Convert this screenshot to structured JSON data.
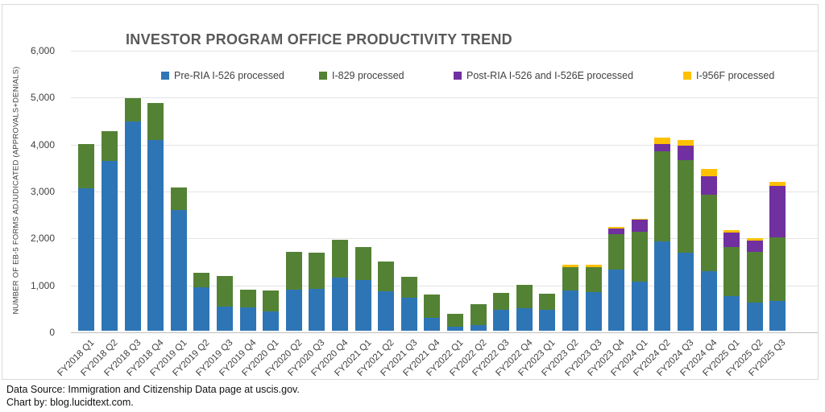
{
  "footer": {
    "source_line": "Data Source: Immigration and Citizenship Data page at uscis.gov.",
    "credit_line": "Chart by: blog.lucidtext.com."
  },
  "chart_data": {
    "type": "bar",
    "stacked": true,
    "title": "INVESTOR PROGRAM OFFICE PRODUCTIVITY TREND",
    "ylabel": "NUMBER OF EB-5 FORMS ADJUDICATED (APPROVALS+DENIALS)",
    "xlabel": "",
    "ylim": [
      0,
      6000
    ],
    "grid": true,
    "legend_position": "top",
    "ytick_labels": [
      "0",
      "1,000",
      "2,000",
      "3,000",
      "4,000",
      "5,000",
      "6,000"
    ],
    "ytick_values": [
      0,
      1000,
      2000,
      3000,
      4000,
      5000,
      6000
    ],
    "categories": [
      "FY2018 Q1",
      "FY2018 Q2",
      "FY2018 Q3",
      "FY2018 Q4",
      "FY2019 Q1",
      "FY2019 Q2",
      "FY2019 Q3",
      "FY2019 Q4",
      "FY2020 Q1",
      "FY2020 Q2",
      "FY2020 Q3",
      "FY2020 Q4",
      "FY2021 Q1",
      "FY2021 Q2",
      "FY2021 Q3",
      "FY2021 Q4",
      "FY2022 Q1",
      "FY2022 Q2",
      "FY2022 Q3",
      "FY2022 Q4",
      "FY2023 Q1",
      "FY2023 Q2",
      "FY2023 Q3",
      "FY2023 Q4",
      "FY2024 Q1",
      "FY2024 Q2",
      "FY2024 Q3",
      "FY2024 Q4",
      "FY2025 Q1",
      "FY2025 Q2",
      "FY2025 Q3"
    ],
    "series": [
      {
        "name": "Pre-RIA I-526 processed",
        "color": "#2E75B6",
        "values": [
          3040,
          3615,
          4460,
          4060,
          2580,
          930,
          515,
          505,
          410,
          870,
          900,
          1125,
          1075,
          840,
          705,
          270,
          85,
          125,
          440,
          485,
          440,
          860,
          830,
          1300,
          1040,
          1905,
          1660,
          1270,
          745,
          600,
          640
        ]
      },
      {
        "name": "I-829 processed",
        "color": "#548235",
        "values": [
          930,
          645,
          490,
          785,
          480,
          310,
          645,
          370,
          450,
          810,
          755,
          815,
          715,
          630,
          440,
          495,
          270,
          435,
          360,
          485,
          345,
          495,
          525,
          760,
          1070,
          1925,
          1970,
          1620,
          1030,
          1085,
          1345
        ]
      },
      {
        "name": "Post-RIA I-526 and I-526E processed",
        "color": "#7030A0",
        "values": [
          0,
          0,
          0,
          0,
          0,
          0,
          0,
          0,
          0,
          0,
          0,
          0,
          0,
          0,
          0,
          0,
          0,
          0,
          0,
          0,
          0,
          0,
          0,
          120,
          255,
          145,
          315,
          410,
          325,
          240,
          1100
        ]
      },
      {
        "name": "I-956F processed",
        "color": "#FFC000",
        "values": [
          0,
          0,
          0,
          0,
          0,
          0,
          0,
          0,
          0,
          0,
          0,
          0,
          0,
          0,
          0,
          0,
          0,
          0,
          0,
          0,
          0,
          45,
          45,
          40,
          25,
          140,
          125,
          140,
          35,
          45,
          85
        ]
      }
    ]
  }
}
